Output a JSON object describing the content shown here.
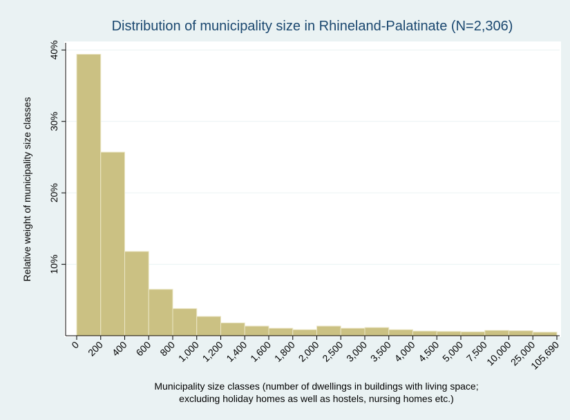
{
  "chart_data": {
    "type": "histogram",
    "title": "Distribution of municipality size in Rhineland-Palatinate (N=2,306)",
    "ylabel": "Relative weight of municipality size classes",
    "xlabel": [
      "Municipality size classes (number of dwellings in buildings with living space;",
      "excluding holiday homes as well as hostels, nursing homes etc.)"
    ],
    "bins": [
      0,
      200,
      400,
      600,
      800,
      {
        "value": 1000,
        "label": "1,000"
      },
      {
        "value": 1200,
        "label": "1,200"
      },
      {
        "value": 1400,
        "label": "1,400"
      },
      {
        "value": 1600,
        "label": "1,600"
      },
      {
        "value": 1800,
        "label": "1,800"
      },
      {
        "value": 2000,
        "label": "2,000"
      },
      {
        "value": 2500,
        "label": "2,500"
      },
      {
        "value": 3000,
        "label": "3,000"
      },
      {
        "value": 3500,
        "label": "3,500"
      },
      {
        "value": 4000,
        "label": "4,000"
      },
      {
        "value": 4500,
        "label": "4,500"
      },
      {
        "value": 5000,
        "label": "5,000"
      },
      {
        "value": 7500,
        "label": "7,500"
      },
      {
        "value": 10000,
        "label": "10,000"
      },
      {
        "value": 25000,
        "label": "25,000"
      },
      {
        "value": 105690,
        "label": "105,690"
      }
    ],
    "values": [
      39.4,
      25.7,
      11.8,
      6.5,
      3.8,
      2.7,
      1.8,
      1.35,
      1.05,
      0.85,
      1.35,
      1.05,
      1.15,
      0.85,
      0.65,
      0.6,
      0.55,
      0.75,
      0.7,
      0.5
    ],
    "color": "#cbc183",
    "ylim": [
      0,
      41
    ],
    "yticks": [
      {
        "value": 10,
        "label": "10%"
      },
      {
        "value": 20,
        "label": "20%"
      },
      {
        "value": 30,
        "label": "30%"
      },
      {
        "value": 40,
        "label": "40%"
      }
    ],
    "grid": true
  }
}
